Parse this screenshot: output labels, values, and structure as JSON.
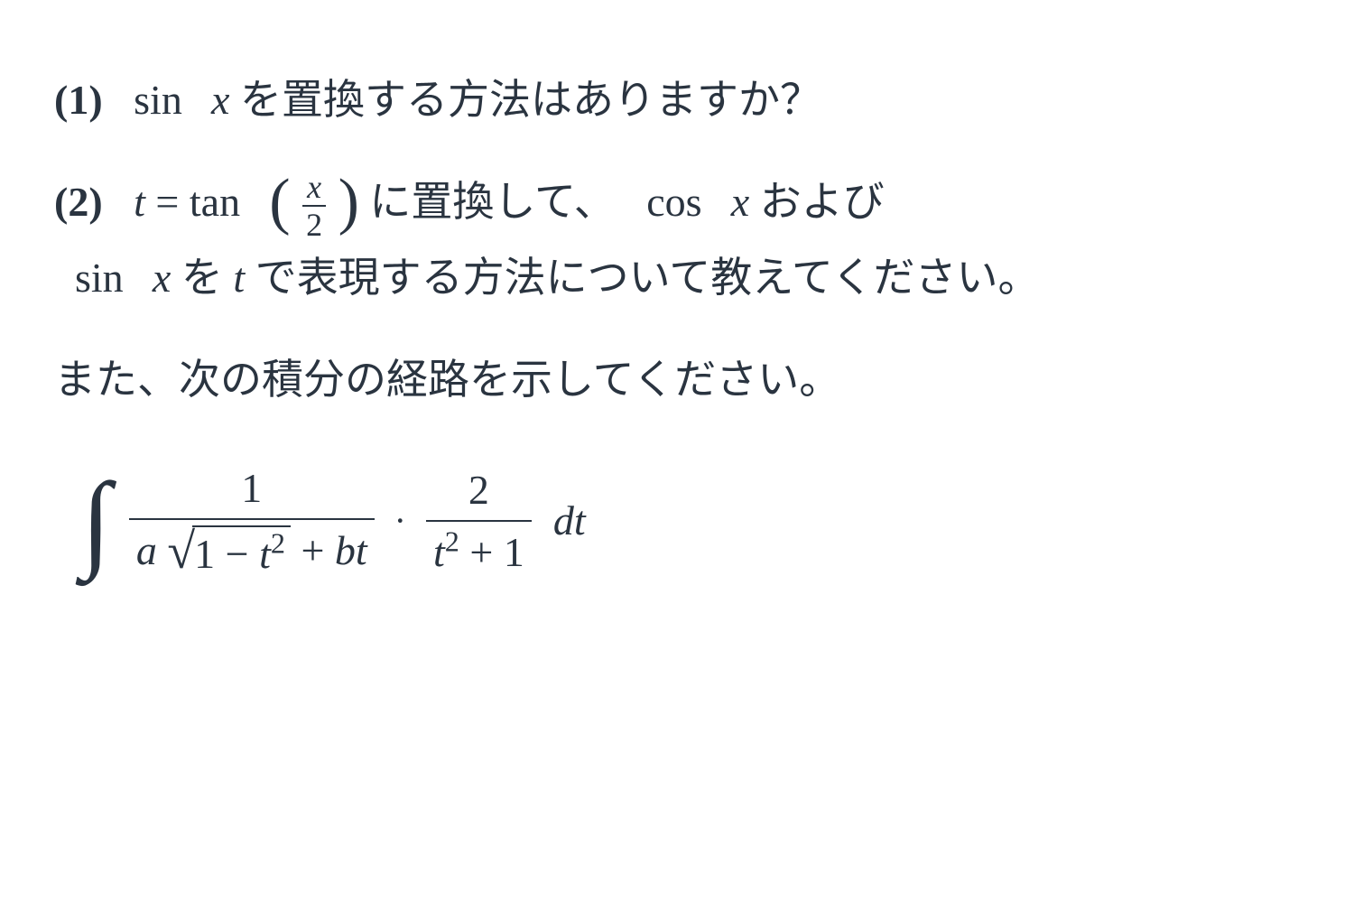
{
  "para1": {
    "label": "(1)",
    "sinx": "sin",
    "var1": "x",
    "text": " を置換する方法はありますか？"
  },
  "para2": {
    "label": "(2)",
    "t_eq": "t",
    "eq": " = ",
    "tan": "tan",
    "frac_num": "x",
    "frac_den": "2",
    "text1": " に置換して、",
    "cos": "cos",
    "var_cos": "x",
    "text2": " および",
    "sin": "sin",
    "var_sin": "x",
    "text3": " を ",
    "t2": "t",
    "text4": " で表現する方法について教えてください。"
  },
  "para3": {
    "text": "また、次の積分の経路を示してください。"
  },
  "integral": {
    "int_sign": "∫",
    "frac1_num": "1",
    "frac1_den_a": "a",
    "sqrt_sign": "√",
    "sqrt_body_1": "1 − ",
    "sqrt_body_t": "t",
    "sqrt_body_exp": "2",
    "frac1_den_plus": " + ",
    "frac1_den_bt": "bt",
    "cdot": "·",
    "frac2_num": "2",
    "frac2_den_t": "t",
    "frac2_den_exp": "2",
    "frac2_den_plus": " + 1",
    "dt_d": "d",
    "dt_t": "t"
  },
  "colors": {
    "text": "#2a3440",
    "bg": "#ffffff"
  }
}
